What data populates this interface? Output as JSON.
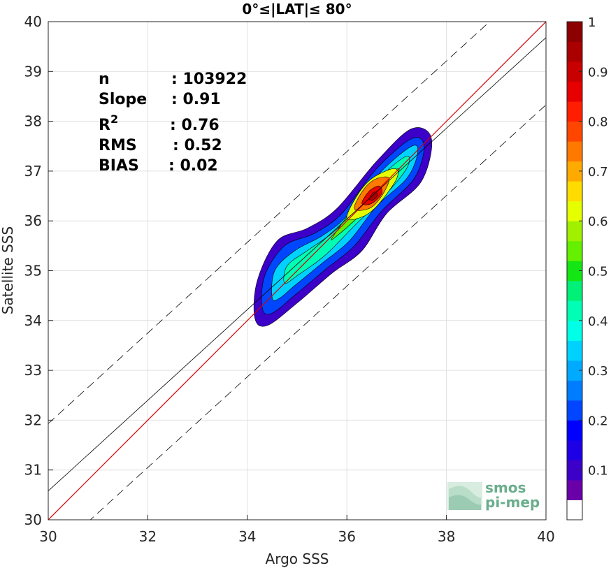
{
  "chart_data": {
    "type": "contour",
    "title": "0°≤|LAT|≤ 80°",
    "xlabel": "Argo SSS",
    "ylabel": "Satellite SSS",
    "xlim": [
      30,
      40
    ],
    "ylim": [
      30,
      40
    ],
    "xticks": [
      30,
      32,
      34,
      36,
      38,
      40
    ],
    "yticks": [
      30,
      31,
      32,
      33,
      34,
      35,
      36,
      37,
      38,
      39,
      40
    ],
    "grid": true,
    "stats": [
      {
        "label": "n",
        "value": ": 103922"
      },
      {
        "label": "Slope",
        "value": ": 0.91"
      },
      {
        "label": "R",
        "sup": "2",
        "value": ": 0.76"
      },
      {
        "label": "RMS",
        "value": ": 0.52"
      },
      {
        "label": "BIAS",
        "value": ": 0.02"
      }
    ],
    "lines": {
      "identity": {
        "slope": 1,
        "intercept": 0,
        "color": "#d40000"
      },
      "regression": {
        "slope": 0.91,
        "x0": 30,
        "y0": 30.58,
        "color": "#000000"
      },
      "rms_offset": 1.35
    },
    "density_center": [
      36.5,
      36.45
    ],
    "colorbar": {
      "range": [
        0,
        1
      ],
      "ticks": [
        0.1,
        0.2,
        0.3,
        0.4,
        0.5,
        0.6,
        0.7,
        0.8,
        0.9,
        1
      ],
      "tick_labels": [
        "0.1",
        "0.2",
        "0.3",
        "0.4",
        "0.5",
        "0.6",
        "0.7",
        "0.8",
        "0.9",
        "1"
      ],
      "colors": [
        "#ffffff",
        "#6a00a8",
        "#3c00c8",
        "#1e00e6",
        "#0000ff",
        "#0046ff",
        "#007dff",
        "#00aaff",
        "#00d2ff",
        "#00ffe6",
        "#00ffb4",
        "#00f078",
        "#14e614",
        "#64f000",
        "#a0f000",
        "#e6ff00",
        "#ffdc00",
        "#ffaa00",
        "#ff7800",
        "#ff4600",
        "#ff1e00",
        "#e60000",
        "#c80000",
        "#aa0000",
        "#8c0000"
      ]
    }
  },
  "logo": {
    "line1": "smos",
    "line2": "pi-mep"
  }
}
